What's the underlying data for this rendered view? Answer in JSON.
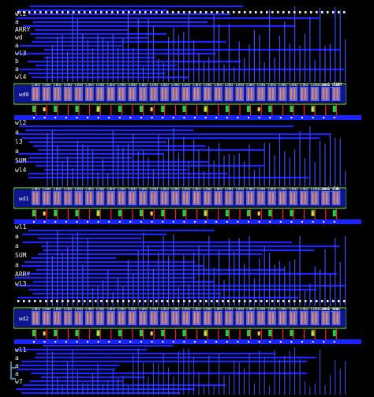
{
  "layout_view": {
    "colors": {
      "background": "#000000",
      "metal_blue": "#1a24ff",
      "metal_blue_light": "#3a4cff",
      "via_white": "#e8e8ff",
      "diffusion_green": "#1fd13a",
      "poly_red": "#ff2020",
      "contact_yellow": "#f4d83a",
      "highlight_box": "#5cff5c",
      "wire_cyan": "#5ad6ff"
    },
    "top_labels": [
      "wl2",
      "a",
      "ARRY",
      "wd",
      "a",
      "wl3",
      "b",
      "a",
      "wl4"
    ],
    "mid_labels": [
      "wl2",
      "a",
      "l3",
      "a",
      "SUM",
      "wl4"
    ],
    "lower_labels": [
      "wl1",
      "a",
      "a",
      "SUM",
      "a",
      "ARRY",
      "wl3"
    ],
    "bottom_labels": [
      "wl1",
      "a",
      "a",
      "a",
      "w7"
    ],
    "rows": [
      {
        "cell_name": "cmo",
        "suffix": "cmoi_SUM",
        "left_tag": "wd0",
        "cells": 29
      },
      {
        "cell_name": "cmo",
        "suffix": "cmoi_CA",
        "left_tag": "wd1",
        "cells": 29
      },
      {
        "cell_name": "cmo",
        "suffix": "cmoi_ww",
        "left_tag": "wd2",
        "cells": 29
      }
    ]
  }
}
